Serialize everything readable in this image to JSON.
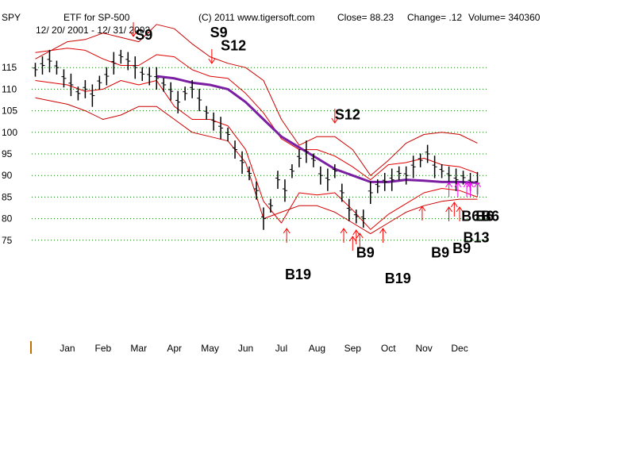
{
  "header": {
    "symbol": "SPY",
    "name": "ETF for SP-500",
    "date_range": "12/ 20/ 2001 - 12/ 31/ 2002",
    "copyright": "(C) 2011 www.tigersoft.com",
    "close_text": "Close=  88.23",
    "change_text": "Change= .12",
    "volume_text": "Volume= 340360"
  },
  "colors": {
    "price": "#000000",
    "band": "#e00000",
    "outer_band": "#cc0000",
    "ma": "#7b1fa2",
    "grid": "#008000",
    "buy_arrow": "#ff0000",
    "magenta_arrow": "#ff00ff",
    "sell_arrow": "#ff0000",
    "axis_mark": "#c07000"
  },
  "chart_data": {
    "type": "line",
    "title": "ETF for SP-500",
    "x": [
      "Jan",
      "Feb",
      "Mar",
      "Apr",
      "May",
      "Jun",
      "Jul",
      "Aug",
      "Sep",
      "Oct",
      "Nov",
      "Dec"
    ],
    "x_pos": [
      0.5,
      1.5,
      2.5,
      3.5,
      4.5,
      5.5,
      6.5,
      7.5,
      8.5,
      9.5,
      10.5,
      11.5
    ],
    "xlim": [
      -0.5,
      12.3
    ],
    "ylim": [
      70,
      120
    ],
    "yticks": [
      75,
      80,
      85,
      90,
      95,
      100,
      105,
      110,
      115
    ],
    "grid": true,
    "series": [
      {
        "key": "close",
        "style": "bars",
        "x": [
          -0.4,
          -0.2,
          0.0,
          0.2,
          0.4,
          0.6,
          0.8,
          1.0,
          1.2,
          1.4,
          1.6,
          1.8,
          2.0,
          2.2,
          2.4,
          2.6,
          2.8,
          3.0,
          3.2,
          3.4,
          3.6,
          3.8,
          4.0,
          4.2,
          4.4,
          4.6,
          4.8,
          5.0,
          5.2,
          5.4,
          5.6,
          5.8,
          6.0,
          6.2,
          6.4,
          6.6,
          6.8,
          7.0,
          7.2,
          7.4,
          7.6,
          7.8,
          8.0,
          8.2,
          8.4,
          8.6,
          8.8,
          9.0,
          9.2,
          9.4,
          9.6,
          9.8,
          10.0,
          10.2,
          10.4,
          10.6,
          10.8,
          11.0,
          11.2,
          11.4,
          11.6,
          11.8,
          12.0
        ],
        "values": [
          114.5,
          115.5,
          116.5,
          115,
          112.5,
          111,
          109,
          110,
          108.5,
          111.5,
          113,
          116,
          117.5,
          116.5,
          115,
          113.5,
          113,
          112.5,
          111,
          109.5,
          107,
          109,
          110,
          107.5,
          104.5,
          102.5,
          101,
          99.5,
          96,
          93,
          90.5,
          86.5,
          80,
          83,
          89,
          86.5,
          91,
          94,
          95.5,
          93.5,
          90,
          89,
          91,
          86,
          82,
          80.5,
          80,
          86,
          87.5,
          88.5,
          89,
          90.5,
          90,
          92,
          93.5,
          95,
          92,
          91,
          90,
          89,
          89.5,
          88.5,
          88.2
        ]
      },
      {
        "key": "upper_band",
        "x": [
          -0.4,
          0.5,
          1.0,
          1.5,
          2.0,
          2.5,
          3.0,
          3.5,
          4.0,
          4.5,
          5.0,
          5.5,
          6.0,
          6.5,
          7.0,
          7.5,
          8.0,
          8.5,
          9.0,
          9.5,
          10.0,
          10.5,
          11.0,
          11.5,
          12.0
        ],
        "values": [
          118.5,
          119.5,
          119,
          117,
          115.5,
          115.5,
          118,
          117.5,
          114.5,
          113,
          112.5,
          109,
          104.5,
          98.5,
          96,
          96,
          94.5,
          92,
          89,
          92.5,
          93,
          94,
          92.5,
          92,
          90.5
        ]
      },
      {
        "key": "lower_band",
        "x": [
          -0.4,
          0.5,
          1.0,
          1.5,
          2.0,
          2.5,
          3.0,
          3.5,
          4.0,
          4.5,
          5.0,
          5.5,
          6.0,
          6.5,
          7.0,
          7.5,
          8.0,
          8.5,
          9.0,
          9.5,
          10.0,
          10.5,
          11.0,
          11.5,
          12.0
        ],
        "values": [
          112,
          111,
          109.5,
          110,
          112,
          111,
          112,
          106,
          103,
          103,
          101.5,
          96,
          84,
          79,
          86,
          85.5,
          86,
          82,
          77.5,
          81,
          83.5,
          86,
          87,
          86.5,
          85
        ]
      },
      {
        "key": "outer_upper",
        "x": [
          -0.4,
          0.5,
          1.0,
          1.5,
          2.0,
          2.5,
          3.0,
          3.5,
          4.0,
          4.5,
          5.0,
          5.5,
          6.0,
          6.5,
          7.0,
          7.5,
          8.0,
          8.5,
          9.0,
          9.5,
          10.0,
          10.5,
          11.0,
          11.5,
          12.0
        ],
        "values": [
          117,
          121,
          121.5,
          123,
          122,
          121,
          125,
          124,
          120.5,
          117.5,
          116,
          115,
          112,
          103,
          97,
          99,
          99,
          96,
          90,
          93.5,
          97.5,
          99.5,
          100,
          99.5,
          97.5
        ]
      },
      {
        "key": "outer_lower",
        "x": [
          -0.4,
          0.5,
          1.0,
          1.5,
          2.0,
          2.5,
          3.0,
          3.5,
          4.0,
          4.5,
          5.0,
          5.5,
          6.0,
          6.5,
          7.0,
          7.5,
          8.0,
          8.5,
          9.0,
          9.5,
          10.0,
          10.5,
          11.0,
          11.5,
          12.0
        ],
        "values": [
          108,
          106.5,
          105,
          103,
          104,
          106,
          106,
          103,
          100,
          99,
          98,
          93,
          80,
          81.5,
          83,
          83,
          81.5,
          79,
          76.5,
          79,
          81.5,
          83,
          84,
          84.5,
          84.5
        ]
      },
      {
        "key": "moving_average",
        "x": [
          3.0,
          3.5,
          4.0,
          4.5,
          5.0,
          5.5,
          6.0,
          6.5,
          7.0,
          7.5,
          8.0,
          8.5,
          9.0,
          9.5,
          10.0,
          10.5,
          11.0,
          11.5,
          12.0
        ],
        "values": [
          113,
          112.5,
          111.5,
          111,
          110,
          107,
          103,
          99,
          96.5,
          94,
          91.5,
          90,
          88.5,
          88.5,
          89,
          88.8,
          88.5,
          88.5,
          88.3
        ]
      }
    ],
    "signals": [
      {
        "label": "S9",
        "kind": "sell",
        "x": 2.4,
        "y": 121.5
      },
      {
        "label": "S9",
        "kind": "sell",
        "x": 4.5,
        "y": 122
      },
      {
        "label": "S12",
        "kind": "sell",
        "x": 4.8,
        "y": 119
      },
      {
        "label": "S12",
        "kind": "sell",
        "x": 8.0,
        "y": 103
      },
      {
        "label": "B19",
        "kind": "buy",
        "x": 6.6,
        "y": 66
      },
      {
        "label": "B9",
        "kind": "buy",
        "x": 8.6,
        "y": 71
      },
      {
        "label": "B19",
        "kind": "buy",
        "x": 9.4,
        "y": 65
      },
      {
        "label": "B9",
        "kind": "buy",
        "x": 10.7,
        "y": 71
      },
      {
        "label": "B9",
        "kind": "buy",
        "x": 11.3,
        "y": 72
      },
      {
        "label": "B13",
        "kind": "buy",
        "x": 11.6,
        "y": 74.5
      },
      {
        "label": "B6",
        "kind": "buy",
        "x": 11.55,
        "y": 79.5
      },
      {
        "label": "B6",
        "kind": "buy",
        "x": 11.95,
        "y": 79.5
      },
      {
        "label": "B6",
        "kind": "buy",
        "x": 12.1,
        "y": 79.5
      }
    ],
    "buy_arrows": [
      6.65,
      8.25,
      8.5,
      8.6,
      8.7,
      9.35,
      10.45,
      11.2,
      11.35,
      11.5
    ],
    "magenta_arrows": [
      11.2,
      11.45,
      11.7,
      11.8,
      12.0
    ]
  }
}
